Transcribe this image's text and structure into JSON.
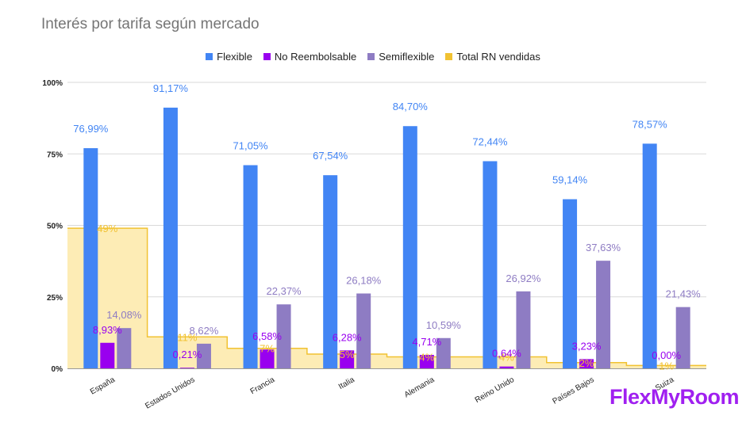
{
  "chart_data": {
    "type": "bar",
    "title": "Interés por tarifa según mercado",
    "categories": [
      "España",
      "Estados Unidos",
      "Francia",
      "Italia",
      "Alemania",
      "Reino Unido",
      "Países Bajos",
      "Suiza"
    ],
    "series": [
      {
        "name": "Flexible",
        "color": "#4285f4",
        "label_color": "#4285f4",
        "values": [
          76.99,
          91.17,
          71.05,
          67.54,
          84.7,
          72.44,
          59.14,
          78.57
        ],
        "labels": [
          "76,99%",
          "91,17%",
          "71,05%",
          "67,54%",
          "84,70%",
          "72,44%",
          "59,14%",
          "78,57%"
        ]
      },
      {
        "name": "No Reembolsable",
        "color": "#9900ef",
        "label_color": "#9900ef",
        "values": [
          8.93,
          0.21,
          6.58,
          6.28,
          4.71,
          0.64,
          3.23,
          0.0
        ],
        "labels": [
          "8,93%",
          "0,21%",
          "6,58%",
          "6,28%",
          "4,71%",
          "0,64%",
          "3,23%",
          "0,00%"
        ]
      },
      {
        "name": "Semiflexible",
        "color": "#8e7cc3",
        "label_color": "#8e7cc3",
        "values": [
          14.08,
          8.62,
          22.37,
          26.18,
          10.59,
          26.92,
          37.63,
          21.43
        ],
        "labels": [
          "14,08%",
          "8,62%",
          "22,37%",
          "26,18%",
          "10,59%",
          "26,92%",
          "37,63%",
          "21,43%"
        ]
      },
      {
        "name": "Total RN vendidas",
        "type": "stepped-area",
        "color": "#f1c232",
        "fill": "#fdecb5",
        "label_color": "#f1c232",
        "values": [
          49,
          11,
          7,
          5,
          4,
          4,
          2,
          1
        ],
        "labels": [
          "49%",
          "11%",
          "7%",
          "5%",
          "4%",
          "4%",
          "2%",
          "1%"
        ]
      }
    ],
    "ylim": [
      0,
      100
    ],
    "yticks": [
      "0%",
      "25%",
      "50%",
      "75%",
      "100%"
    ],
    "ytick_values": [
      0,
      25,
      50,
      75,
      100
    ],
    "legend_position": "top-center"
  },
  "brand": "FlexMyRoom"
}
